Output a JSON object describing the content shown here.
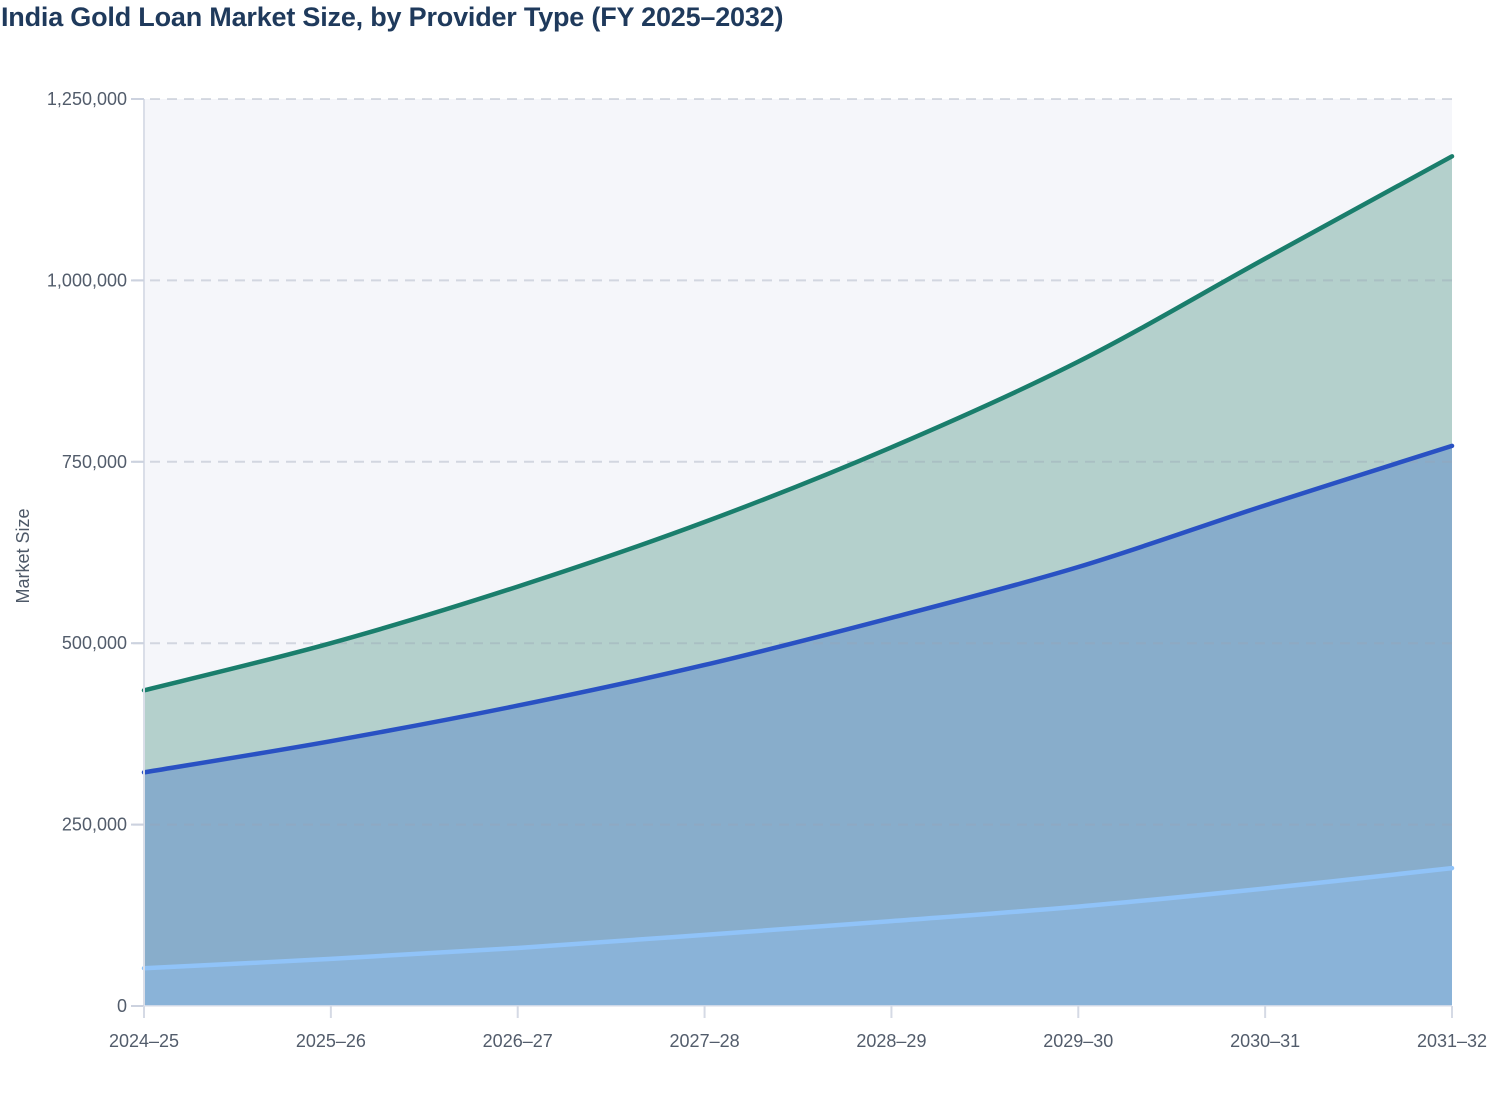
{
  "page": {
    "title": "India Gold Loan Market Size, by Provider Type (FY 2025–2032)"
  },
  "chart_data": {
    "type": "area",
    "title": "India Gold Loan Market Size, by Provider Type (FY 2025–2032)",
    "xlabel": "",
    "ylabel": "Market Size",
    "legend": "none",
    "grid": "dashed horizontal gridlines",
    "stacking_note": "three overlaid area bands; values are the plotted line positions (cumulative stacked totals) read from the y-axis",
    "categories": [
      "2024–25",
      "2025–26",
      "2026–27",
      "2027–28",
      "2028–29",
      "2029–30",
      "2030–31",
      "2031–32"
    ],
    "series": [
      {
        "name": "teal-top-series",
        "color": "#1a7e6c",
        "fill": "#b4d0cc",
        "values": [
          435000,
          500000,
          578000,
          667000,
          770000,
          888000,
          1030000,
          1171000
        ]
      },
      {
        "name": "blue-middle-series",
        "color": "#2951c3",
        "fill": "#88adcb",
        "values": [
          322000,
          365000,
          414000,
          470000,
          535000,
          605000,
          690000,
          772000
        ]
      },
      {
        "name": "light-blue-bottom-series",
        "color": "#90c3f8",
        "fill": "#8ab3d8",
        "values": [
          52000,
          65000,
          80000,
          98000,
          117000,
          137000,
          162000,
          190000
        ]
      }
    ],
    "y_ticks": [
      {
        "value": 0,
        "label": "0"
      },
      {
        "value": 250000,
        "label": "250,000"
      },
      {
        "value": 500000,
        "label": "500,000"
      },
      {
        "value": 750000,
        "label": "750,000"
      },
      {
        "value": 1000000,
        "label": "1,000,000"
      },
      {
        "value": 1250000,
        "label": "1,250,000"
      }
    ],
    "ylim": [
      0,
      1250000
    ],
    "colors": {
      "title": "#1f3a5c",
      "plot_bg": "#f5f6fa",
      "gridline": "#99a3b6",
      "axis_line": "#dadee8",
      "tick_mark": "#ccd2df",
      "tick_label": "#525c6b",
      "y_axis_title": "#4e5968"
    }
  }
}
